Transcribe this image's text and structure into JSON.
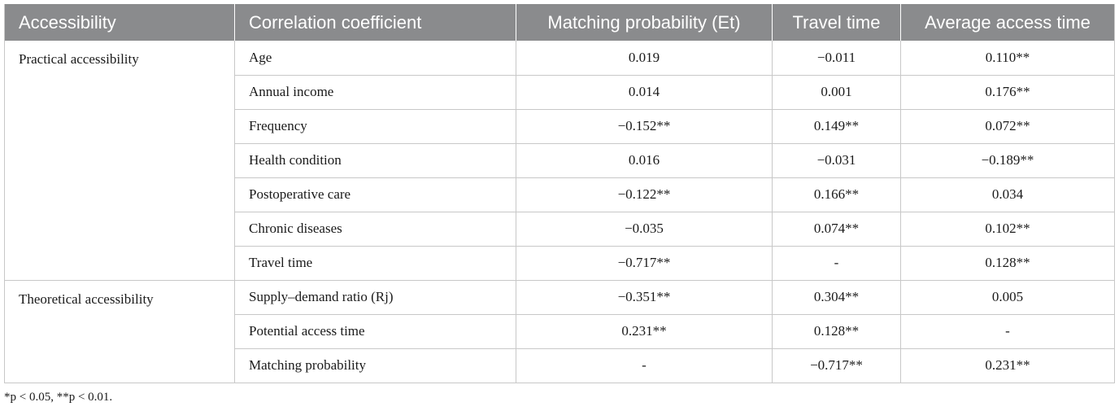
{
  "table": {
    "headers": [
      "Accessibility",
      "Correlation coefficient",
      "Matching probability (Et)",
      "Travel time",
      "Average access time"
    ],
    "groups": [
      {
        "label": "Practical accessibility",
        "rows": [
          {
            "variable": "Age",
            "et": "0.019",
            "travel": "−0.011",
            "access": "0.110**"
          },
          {
            "variable": "Annual income",
            "et": "0.014",
            "travel": "0.001",
            "access": "0.176**"
          },
          {
            "variable": "Frequency",
            "et": "−0.152**",
            "travel": "0.149**",
            "access": "0.072**"
          },
          {
            "variable": "Health condition",
            "et": "0.016",
            "travel": "−0.031",
            "access": "−0.189**"
          },
          {
            "variable": "Postoperative care",
            "et": "−0.122**",
            "travel": "0.166**",
            "access": "0.034"
          },
          {
            "variable": "Chronic diseases",
            "et": "−0.035",
            "travel": "0.074**",
            "access": "0.102**"
          },
          {
            "variable": "Travel time",
            "et": "−0.717**",
            "travel": "-",
            "access": "0.128**"
          }
        ]
      },
      {
        "label": "Theoretical accessibility",
        "rows": [
          {
            "variable": "Supply–demand ratio (Rj)",
            "et": "−0.351**",
            "travel": "0.304**",
            "access": "0.005"
          },
          {
            "variable": "Potential access time",
            "et": "0.231**",
            "travel": "0.128**",
            "access": "-"
          },
          {
            "variable": "Matching probability",
            "et": "-",
            "travel": "−0.717**",
            "access": "0.231**"
          }
        ]
      }
    ]
  },
  "footnote": "*p < 0.05, **p < 0.01."
}
